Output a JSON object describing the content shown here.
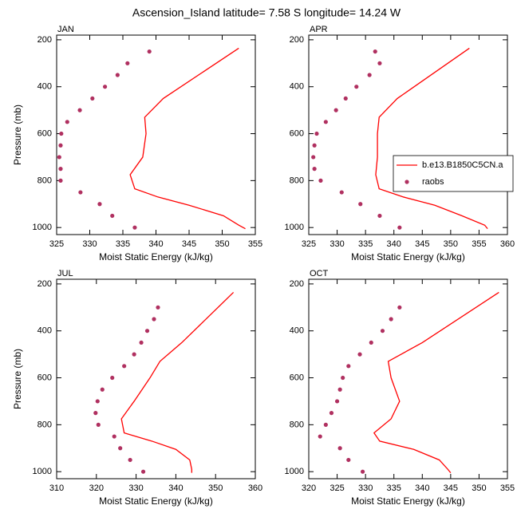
{
  "title": "Ascension_Island  latitude= 7.58 S longitude= 14.24 W",
  "chart_data": [
    {
      "type": "line",
      "title": "JAN",
      "xlabel": "Moist Static Energy (kJ/kg)",
      "ylabel": "Pressure (mb)",
      "xlim": [
        325,
        355
      ],
      "xticks": [
        325,
        330,
        335,
        340,
        345,
        350,
        355
      ],
      "ylim": [
        1030,
        180
      ],
      "yticks": [
        200,
        400,
        600,
        800,
        1000
      ],
      "series": [
        {
          "name": "b.e13.B1850C5CN.a",
          "color": "#ff0000",
          "mark": "line",
          "x": [
            352.5,
            341.1,
            338.3,
            338.5,
            338.0,
            336.1,
            336.8,
            340.3,
            345.0,
            350.2,
            352.5,
            353.5
          ],
          "values": [
            236,
            450,
            530,
            600,
            700,
            775,
            835,
            870,
            905,
            950,
            990,
            1005
          ]
        },
        {
          "name": "raobs",
          "color": "#b03060",
          "mark": "marker",
          "x": [
            339.0,
            335.7,
            334.2,
            332.3,
            330.4,
            328.5,
            326.6,
            325.7,
            325.6,
            325.4,
            325.6,
            325.6,
            328.6,
            331.5,
            333.4,
            336.8
          ],
          "values": [
            250,
            300,
            350,
            400,
            450,
            500,
            550,
            600,
            650,
            700,
            750,
            800,
            850,
            900,
            950,
            1000
          ]
        }
      ]
    },
    {
      "type": "line",
      "title": "APR",
      "xlabel": "Moist Static Energy (kJ/kg)",
      "legend": "right",
      "xlim": [
        325,
        360
      ],
      "xticks": [
        325,
        330,
        335,
        340,
        345,
        350,
        355,
        360
      ],
      "ylim": [
        1030,
        180
      ],
      "yticks": [
        200,
        400,
        600,
        800,
        1000
      ],
      "series": [
        {
          "name": "b.e13.B1850C5CN.a",
          "color": "#ff0000",
          "mark": "line",
          "x": [
            353.3,
            340.6,
            337.4,
            337.1,
            337.1,
            336.8,
            337.4,
            341.7,
            347.2,
            352.0,
            356.0,
            356.5
          ],
          "values": [
            236,
            450,
            530,
            600,
            700,
            775,
            835,
            870,
            905,
            950,
            990,
            1005
          ]
        },
        {
          "name": "raobs",
          "color": "#b03060",
          "mark": "marker",
          "x": [
            336.7,
            337.5,
            335.7,
            333.4,
            331.5,
            329.8,
            328.0,
            326.4,
            326.0,
            325.8,
            326.0,
            327.1,
            330.8,
            334.1,
            337.5,
            341.0
          ],
          "values": [
            250,
            300,
            350,
            400,
            450,
            500,
            550,
            600,
            650,
            700,
            750,
            800,
            850,
            900,
            950,
            1000
          ]
        }
      ]
    },
    {
      "type": "line",
      "title": "JUL",
      "xlabel": "Moist Static Energy (kJ/kg)",
      "ylabel": "Pressure (mb)",
      "xlim": [
        310,
        360
      ],
      "xticks": [
        310,
        320,
        330,
        340,
        350,
        360
      ],
      "ylim": [
        1030,
        180
      ],
      "yticks": [
        200,
        400,
        600,
        800,
        1000
      ],
      "series": [
        {
          "name": "b.e13.B1850C5CN.a",
          "color": "#ff0000",
          "mark": "line",
          "x": [
            354.5,
            341.5,
            336.0,
            333.5,
            329.5,
            326.3,
            327.0,
            334.0,
            340.0,
            343.5,
            344.0,
            344.0
          ],
          "values": [
            236,
            450,
            530,
            600,
            700,
            775,
            835,
            870,
            905,
            950,
            990,
            1005
          ]
        },
        {
          "name": "raobs",
          "color": "#b03060",
          "mark": "marker",
          "x": [
            335.5,
            334.5,
            332.8,
            331.3,
            329.5,
            327.0,
            324.0,
            321.5,
            320.3,
            319.8,
            320.5,
            324.5,
            326.0,
            328.5,
            331.8
          ],
          "values": [
            300,
            350,
            400,
            450,
            500,
            550,
            600,
            650,
            700,
            750,
            800,
            850,
            900,
            950,
            1000
          ]
        }
      ]
    },
    {
      "type": "line",
      "title": "OCT",
      "xlabel": "Moist Static Energy (kJ/kg)",
      "xlim": [
        320,
        355
      ],
      "xticks": [
        320,
        325,
        330,
        335,
        340,
        345,
        350,
        355
      ],
      "ylim": [
        1030,
        180
      ],
      "yticks": [
        200,
        400,
        600,
        800,
        1000
      ],
      "series": [
        {
          "name": "b.e13.B1850C5CN.a",
          "color": "#ff0000",
          "mark": "line",
          "x": [
            353.5,
            340.0,
            334.0,
            334.5,
            336.0,
            334.5,
            331.5,
            332.5,
            338.5,
            343.0,
            344.5,
            345.0
          ],
          "values": [
            236,
            450,
            530,
            600,
            700,
            775,
            835,
            870,
            905,
            950,
            990,
            1005
          ]
        },
        {
          "name": "raobs",
          "color": "#b03060",
          "mark": "marker",
          "x": [
            336.0,
            334.5,
            333.0,
            331.0,
            329.0,
            327.0,
            326.0,
            325.5,
            325.0,
            324.0,
            323.0,
            322.0,
            325.5,
            327.0,
            329.5
          ],
          "values": [
            300,
            350,
            400,
            450,
            500,
            550,
            600,
            650,
            700,
            750,
            800,
            850,
            900,
            950,
            1000
          ]
        }
      ]
    }
  ]
}
